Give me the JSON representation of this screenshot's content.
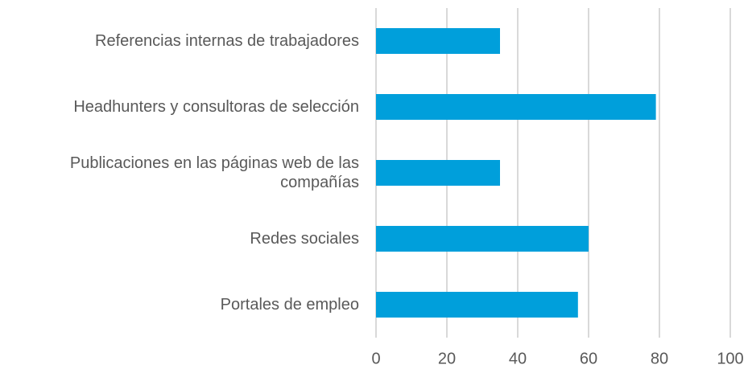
{
  "chart_data": {
    "type": "bar",
    "orientation": "horizontal",
    "categories": [
      "Referencias internas de trabajadores",
      "Headhunters y consultoras de selección",
      "Publicaciones en las páginas web de las compañías",
      "Redes sociales",
      "Portales de empleo"
    ],
    "values": [
      35,
      79,
      35,
      60,
      57
    ],
    "color": "#009fdb",
    "xlim": [
      0,
      100
    ],
    "xticks": [
      0,
      20,
      40,
      60,
      80,
      100
    ],
    "grid": true
  }
}
